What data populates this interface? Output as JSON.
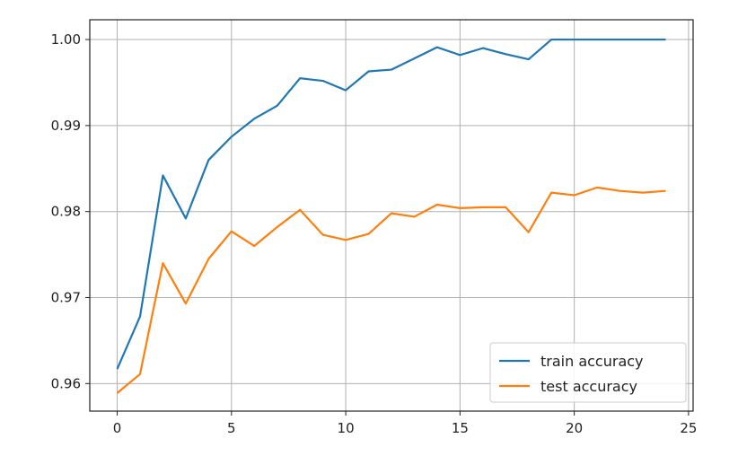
{
  "chart_data": {
    "type": "line",
    "title": "",
    "xlabel": "",
    "ylabel": "",
    "xlim": [
      -1.2,
      25.2
    ],
    "ylim": [
      0.9568,
      1.0023
    ],
    "grid": true,
    "legend_position": "lower-right",
    "xticks": [
      0,
      5,
      10,
      15,
      20,
      25
    ],
    "xtick_labels": [
      "0",
      "5",
      "10",
      "15",
      "20",
      "25"
    ],
    "yticks": [
      0.96,
      0.97,
      0.98,
      0.99,
      1.0
    ],
    "ytick_labels": [
      "0.96",
      "0.97",
      "0.98",
      "0.99",
      "1.00"
    ],
    "x": [
      0,
      1,
      2,
      3,
      4,
      5,
      6,
      7,
      8,
      9,
      10,
      11,
      12,
      13,
      14,
      15,
      16,
      17,
      18,
      19,
      20,
      21,
      22,
      23,
      24
    ],
    "series": [
      {
        "name": "train accuracy",
        "color": "#1f77b4",
        "values": [
          0.9617,
          0.9678,
          0.9842,
          0.9792,
          0.986,
          0.9887,
          0.9908,
          0.9923,
          0.9955,
          0.9952,
          0.9941,
          0.9963,
          0.9965,
          0.9978,
          0.9991,
          0.9982,
          0.999,
          0.9983,
          0.9977,
          1.0,
          1.0,
          1.0,
          1.0,
          1.0,
          1.0
        ]
      },
      {
        "name": "test accuracy",
        "color": "#ff7f0e",
        "values": [
          0.9589,
          0.9611,
          0.974,
          0.9693,
          0.9745,
          0.9777,
          0.976,
          0.9782,
          0.9802,
          0.9773,
          0.9767,
          0.9774,
          0.9798,
          0.9794,
          0.9808,
          0.9804,
          0.9805,
          0.9805,
          0.9776,
          0.9822,
          0.9819,
          0.9828,
          0.9824,
          0.9822,
          0.9824
        ]
      }
    ]
  }
}
